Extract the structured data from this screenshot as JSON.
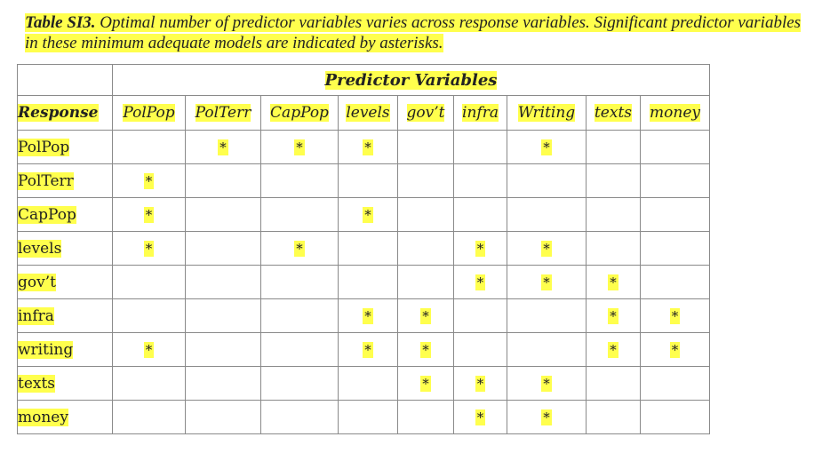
{
  "caption": {
    "label": "Table SI3.",
    "text": " Optimal number of predictor variables varies across response variables. Significant predictor variables in these minimum adequate models are indicated by asterisks."
  },
  "table": {
    "group_header": "Predictor Variables",
    "response_header": "Response",
    "columns": [
      "PolPop",
      "PolTerr",
      "CapPop",
      "levels",
      "gov’t",
      "infra",
      "Writing",
      "texts",
      "money"
    ],
    "rows": [
      {
        "label": "PolPop",
        "cells": [
          "",
          "*",
          "*",
          "*",
          "",
          "",
          "*",
          "",
          ""
        ]
      },
      {
        "label": "PolTerr",
        "cells": [
          "*",
          "",
          "",
          "",
          "",
          "",
          "",
          "",
          ""
        ]
      },
      {
        "label": "CapPop",
        "cells": [
          "*",
          "",
          "",
          "*",
          "",
          "",
          "",
          "",
          ""
        ]
      },
      {
        "label": "levels",
        "cells": [
          "*",
          "",
          "*",
          "",
          "",
          "*",
          "*",
          "",
          ""
        ]
      },
      {
        "label": "gov’t",
        "cells": [
          "",
          "",
          "",
          "",
          "",
          "*",
          "*",
          "*",
          ""
        ]
      },
      {
        "label": "infra",
        "cells": [
          "",
          "",
          "",
          "*",
          "*",
          "",
          "",
          "*",
          "*"
        ]
      },
      {
        "label": "writing",
        "cells": [
          "*",
          "",
          "",
          "*",
          "*",
          "",
          "",
          "*",
          "*"
        ]
      },
      {
        "label": "texts",
        "cells": [
          "",
          "",
          "",
          "",
          "*",
          "*",
          "*",
          "",
          ""
        ]
      },
      {
        "label": "money",
        "cells": [
          "",
          "",
          "",
          "",
          "",
          "*",
          "*",
          "",
          ""
        ]
      }
    ]
  },
  "colors": {
    "highlight": "#ffff4d",
    "border": "#8a8a8a",
    "text": "#222222"
  }
}
